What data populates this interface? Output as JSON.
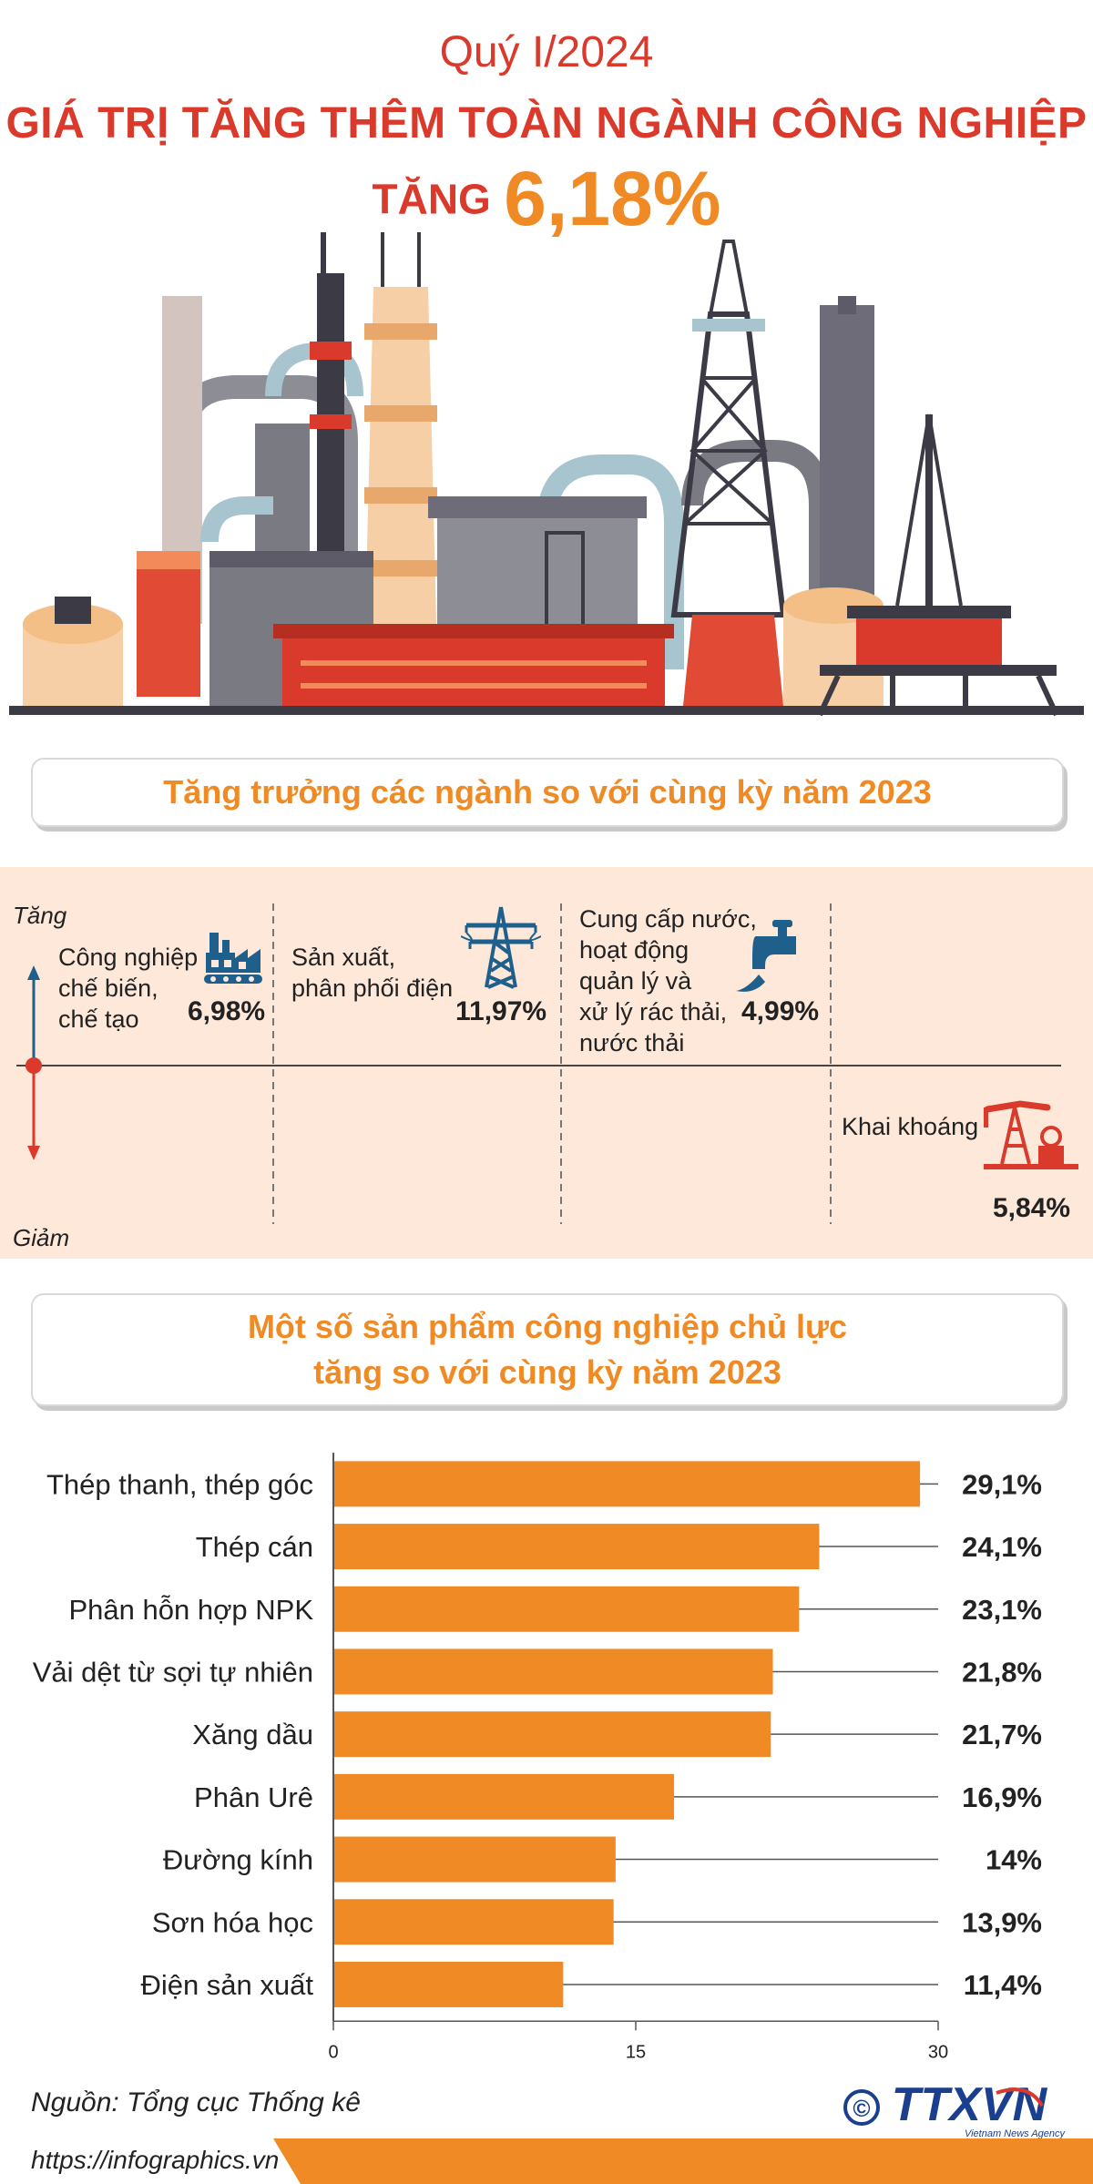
{
  "header": {
    "period": "Quý I/2024",
    "title": "GIÁ TRỊ TĂNG THÊM TOÀN NGÀNH CÔNG NGHIỆP",
    "subtitle_label": "TĂNG",
    "subtitle_value": "6,18%"
  },
  "growth_section": {
    "heading": "Tăng trưởng các ngành so với cùng kỳ năm 2023",
    "up_label": "Tăng",
    "down_label": "Giảm",
    "sectors": [
      {
        "lines": [
          "Công nghiệp",
          "chế biến,",
          "chế tạo"
        ],
        "value": "6,98%",
        "direction": "up",
        "icon": "factory-icon"
      },
      {
        "lines": [
          "Sản xuất,",
          "phân phối điện"
        ],
        "value": "11,97%",
        "direction": "up",
        "icon": "power-tower-icon"
      },
      {
        "lines": [
          "Cung cấp nước,",
          "hoạt động",
          "quản lý và",
          "xử lý rác thải,",
          "nước thải"
        ],
        "value": "4,99%",
        "direction": "up",
        "icon": "water-tap-icon"
      },
      {
        "lines": [
          "Khai khoáng"
        ],
        "value": "5,84%",
        "direction": "down",
        "icon": "oil-pump-icon"
      }
    ],
    "colors": {
      "accent": "#f08a24",
      "up": "#1f5f8b",
      "down": "#d93a2b"
    }
  },
  "products_section": {
    "heading_lines": [
      "Một số sản phẩm công nghiệp chủ lực",
      "tăng so với cùng kỳ năm 2023"
    ]
  },
  "chart_data": {
    "type": "bar",
    "orientation": "horizontal",
    "categories": [
      "Thép thanh, thép góc",
      "Thép cán",
      "Phân hỗn hợp NPK",
      "Vải dệt từ sợi tự nhiên",
      "Xăng dầu",
      "Phân Urê",
      "Đường kính",
      "Sơn hóa học",
      "Điện sản xuất"
    ],
    "values": [
      29.1,
      24.1,
      23.1,
      21.8,
      21.7,
      16.9,
      14,
      13.9,
      11.4
    ],
    "value_labels": [
      "29,1%",
      "24,1%",
      "23,1%",
      "21,8%",
      "21,7%",
      "16,9%",
      "14%",
      "13,9%",
      "11,4%"
    ],
    "xlim": [
      0,
      30
    ],
    "xticks": [
      0,
      15,
      30
    ],
    "bar_color": "#f08a24",
    "grid": false
  },
  "footer": {
    "source": "Nguồn: Tổng cục Thống kê",
    "url": "https://infographics.vn",
    "logo_text": "TTXVN",
    "logo_sub": "Vietnam News Agency",
    "copyright_symbol": "©"
  }
}
